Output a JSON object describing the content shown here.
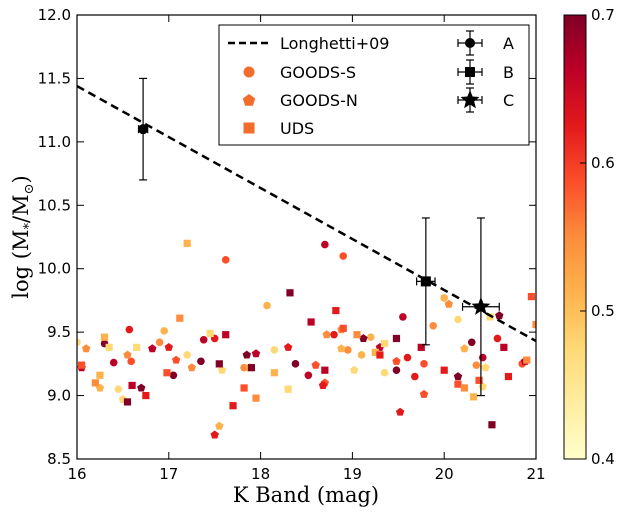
{
  "chart_data": {
    "type": "scatter",
    "xlabel": "K Band (mag)",
    "ylabel": "log (M*/M⊙)",
    "ylabel_parts": {
      "main": "log (M",
      "sub1": "*",
      "slash": "/M",
      "sub2": "⊙",
      "close": ")"
    },
    "xlim": [
      16,
      21
    ],
    "ylim": [
      8.5,
      12.0
    ],
    "xticks": [
      "16",
      "17",
      "18",
      "19",
      "20",
      "21"
    ],
    "yticks": [
      "8.5",
      "9.0",
      "9.5",
      "10.0",
      "10.5",
      "11.0",
      "11.5",
      "12.0"
    ],
    "colorbar": {
      "range": [
        0.4,
        0.7
      ],
      "ticks": [
        "0.4",
        "0.5",
        "0.6",
        "0.7"
      ],
      "colormap": "YlOrRd"
    },
    "line": {
      "name": "Longhetti+09",
      "x": [
        16,
        21
      ],
      "y": [
        11.44,
        9.43
      ]
    },
    "legend": {
      "left": [
        {
          "label": "Longhetti+09",
          "marker": "dashed-line"
        },
        {
          "label": "GOODS-S",
          "marker": "circle"
        },
        {
          "label": "GOODS-N",
          "marker": "pentagon"
        },
        {
          "label": "UDS",
          "marker": "square"
        }
      ],
      "right": [
        {
          "label": "A",
          "marker": "circle"
        },
        {
          "label": "B",
          "marker": "square"
        },
        {
          "label": "C",
          "marker": "star"
        }
      ]
    },
    "highlighted": [
      {
        "name": "A",
        "marker": "circle",
        "x": 16.72,
        "y": 11.1,
        "yerr_low": 0.4,
        "yerr_high": 0.4,
        "xerr": 0.05
      },
      {
        "name": "B",
        "marker": "square",
        "x": 19.8,
        "y": 9.9,
        "yerr_low": 0.5,
        "yerr_high": 0.5,
        "xerr": 0.1
      },
      {
        "name": "C",
        "marker": "star",
        "x": 20.4,
        "y": 9.7,
        "yerr_low": 0.7,
        "yerr_high": 0.7,
        "xerr": 0.2
      }
    ],
    "series": [
      {
        "name": "GOODS-S",
        "marker": "circle",
        "points": [
          [
            16.0,
            9.42
          ],
          [
            16.3,
            9.41
          ],
          [
            16.4,
            9.26
          ],
          [
            16.57,
            9.52
          ],
          [
            16.59,
            9.27
          ],
          [
            16.9,
            9.42
          ],
          [
            16.95,
            9.51
          ],
          [
            17.2,
            9.32
          ],
          [
            17.35,
            9.27
          ],
          [
            17.38,
            9.44
          ],
          [
            17.5,
            9.45
          ],
          [
            17.62,
            10.07
          ],
          [
            17.82,
            9.22
          ],
          [
            18.07,
            9.71
          ],
          [
            18.15,
            9.36
          ],
          [
            18.38,
            9.25
          ],
          [
            18.7,
            10.19
          ],
          [
            18.8,
            9.48
          ],
          [
            18.9,
            10.1
          ],
          [
            18.95,
            9.36
          ],
          [
            19.1,
            9.32
          ],
          [
            19.35,
            9.18
          ],
          [
            19.48,
            9.2
          ],
          [
            19.55,
            9.62
          ],
          [
            19.6,
            9.3
          ],
          [
            19.78,
            9.25
          ],
          [
            19.88,
            9.55
          ],
          [
            20.0,
            9.77
          ],
          [
            20.15,
            9.6
          ],
          [
            20.3,
            9.42
          ],
          [
            20.42,
            9.3
          ],
          [
            20.58,
            9.45
          ],
          [
            20.85,
            9.25
          ],
          [
            20.35,
            9.24
          ],
          [
            19.2,
            9.46
          ],
          [
            16.45,
            9.05
          ],
          [
            17.05,
            9.16
          ],
          [
            18.52,
            9.16
          ],
          [
            19.68,
            9.15
          ]
        ]
      },
      {
        "name": "GOODS-N",
        "marker": "pentagon",
        "points": [
          [
            16.1,
            9.37
          ],
          [
            16.25,
            9.06
          ],
          [
            16.5,
            8.97
          ],
          [
            16.7,
            9.06
          ],
          [
            16.82,
            9.37
          ],
          [
            17.0,
            9.38
          ],
          [
            17.08,
            9.28
          ],
          [
            17.25,
            9.22
          ],
          [
            17.55,
            8.76
          ],
          [
            17.58,
            9.2
          ],
          [
            17.85,
            9.32
          ],
          [
            17.95,
            9.33
          ],
          [
            18.3,
            9.38
          ],
          [
            18.6,
            9.24
          ],
          [
            18.72,
            9.48
          ],
          [
            18.88,
            9.37
          ],
          [
            19.02,
            9.2
          ],
          [
            19.12,
            9.45
          ],
          [
            19.3,
            9.38
          ],
          [
            19.52,
            8.87
          ],
          [
            19.78,
            9.01
          ],
          [
            20.05,
            9.72
          ],
          [
            20.22,
            9.37
          ],
          [
            20.45,
            9.22
          ],
          [
            20.6,
            9.63
          ],
          [
            20.88,
            9.27
          ],
          [
            17.5,
            8.69
          ],
          [
            18.7,
            9.1
          ],
          [
            16.55,
            9.32
          ],
          [
            17.88,
            9.22
          ],
          [
            20.42,
            9.07
          ],
          [
            20.15,
            9.15
          ],
          [
            16.05,
            9.22
          ],
          [
            18.68,
            9.08
          ],
          [
            19.48,
            9.27
          ],
          [
            18.88,
            9.52
          ]
        ]
      },
      {
        "name": "UDS",
        "marker": "square",
        "points": [
          [
            16.05,
            9.24
          ],
          [
            16.2,
            9.1
          ],
          [
            16.3,
            9.46
          ],
          [
            16.35,
            9.38
          ],
          [
            16.55,
            8.95
          ],
          [
            16.6,
            9.08
          ],
          [
            16.75,
            9.0
          ],
          [
            16.98,
            9.18
          ],
          [
            17.12,
            9.61
          ],
          [
            17.2,
            10.2
          ],
          [
            17.45,
            9.49
          ],
          [
            17.55,
            9.25
          ],
          [
            17.62,
            9.48
          ],
          [
            17.7,
            8.92
          ],
          [
            17.82,
            9.06
          ],
          [
            17.95,
            8.98
          ],
          [
            18.15,
            9.18
          ],
          [
            18.3,
            9.05
          ],
          [
            18.32,
            9.81
          ],
          [
            18.7,
            9.2
          ],
          [
            18.82,
            9.67
          ],
          [
            18.9,
            9.53
          ],
          [
            19.05,
            9.48
          ],
          [
            19.25,
            9.34
          ],
          [
            19.35,
            9.41
          ],
          [
            19.48,
            9.45
          ],
          [
            19.75,
            9.38
          ],
          [
            20.0,
            9.2
          ],
          [
            20.15,
            9.09
          ],
          [
            20.22,
            9.06
          ],
          [
            20.32,
            8.99
          ],
          [
            20.5,
            9.62
          ],
          [
            20.52,
            8.77
          ],
          [
            20.65,
            9.38
          ],
          [
            20.7,
            9.15
          ],
          [
            20.95,
            9.78
          ],
          [
            21.0,
            9.56
          ],
          [
            16.25,
            9.16
          ],
          [
            16.65,
            9.38
          ],
          [
            17.9,
            9.22
          ],
          [
            18.55,
            9.58
          ],
          [
            19.3,
            9.32
          ],
          [
            20.38,
            9.12
          ],
          [
            20.9,
            9.28
          ]
        ]
      }
    ]
  }
}
